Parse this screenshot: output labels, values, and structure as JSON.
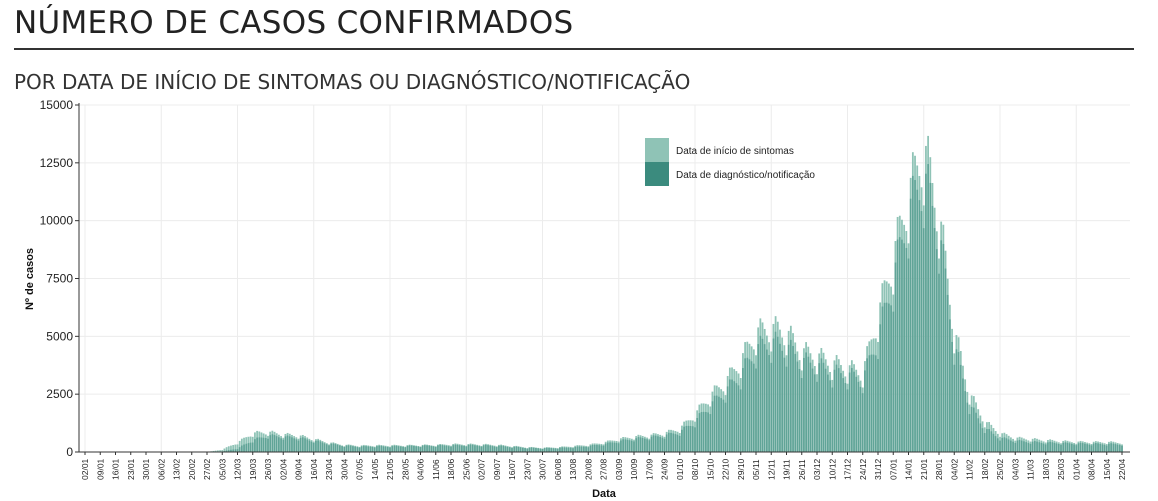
{
  "header": {
    "title": "NÚMERO DE CASOS CONFIRMADOS",
    "subtitle": "POR DATA DE INÍCIO DE SINTOMAS OU DIAGNÓSTICO/NOTIFICAÇÃO"
  },
  "chart_data": {
    "type": "bar",
    "xlabel": "Data",
    "ylabel": "Nº de casos",
    "ylim": [
      0,
      15000
    ],
    "yticks": [
      0,
      2500,
      5000,
      7500,
      10000,
      12500,
      15000
    ],
    "x_tick_labels": [
      "02/01",
      "09/01",
      "16/01",
      "23/01",
      "30/01",
      "06/02",
      "13/02",
      "20/02",
      "27/02",
      "05/03",
      "12/03",
      "19/03",
      "26/03",
      "02/04",
      "09/04",
      "16/04",
      "23/04",
      "30/04",
      "07/05",
      "14/05",
      "21/05",
      "28/05",
      "04/06",
      "11/06",
      "18/06",
      "25/06",
      "02/07",
      "09/07",
      "16/07",
      "23/07",
      "30/07",
      "06/08",
      "13/08",
      "20/08",
      "27/08",
      "03/09",
      "10/09",
      "17/09",
      "24/09",
      "01/10",
      "08/10",
      "15/10",
      "22/10",
      "29/10",
      "05/11",
      "12/11",
      "19/11",
      "26/11",
      "03/12",
      "10/12",
      "17/12",
      "24/12",
      "31/12",
      "07/01",
      "14/01",
      "21/01",
      "28/01",
      "04/02",
      "11/02",
      "18/02",
      "25/02",
      "04/03",
      "11/03",
      "18/03",
      "25/03",
      "01/04",
      "08/04",
      "15/04",
      "22/04"
    ],
    "legend": {
      "placement": "top-right",
      "entries": [
        "Data de início de sintomas",
        "Data de diagnóstico/notificação"
      ]
    },
    "colors": {
      "sintomas": "#8fc3b6",
      "diagnostico": "#3b8b7e",
      "grid": "#ececec"
    },
    "grid": true,
    "weekly_series": [
      {
        "name": "Data de início de sintomas",
        "values": [
          0,
          0,
          0,
          0,
          0,
          0,
          0,
          0,
          0,
          100,
          400,
          800,
          850,
          750,
          700,
          550,
          400,
          300,
          270,
          280,
          280,
          280,
          290,
          300,
          330,
          330,
          320,
          300,
          250,
          200,
          180,
          200,
          250,
          300,
          400,
          550,
          650,
          700,
          800,
          1000,
          1600,
          2400,
          3000,
          3900,
          5100,
          5300,
          5100,
          4300,
          4100,
          3800,
          3600,
          3400,
          5800,
          8300,
          11000,
          13000,
          10200,
          5200,
          2500,
          1300,
          800,
          600,
          550,
          500,
          460,
          430,
          420,
          420,
          400
        ]
      },
      {
        "name": "Data de diagnóstico/notificação",
        "values": [
          0,
          0,
          0,
          0,
          0,
          0,
          0,
          0,
          0,
          20,
          150,
          500,
          700,
          650,
          600,
          480,
          350,
          270,
          230,
          240,
          240,
          250,
          260,
          270,
          280,
          290,
          280,
          260,
          220,
          180,
          160,
          170,
          200,
          250,
          330,
          460,
          560,
          620,
          700,
          850,
          1300,
          2000,
          2600,
          3300,
          4400,
          4700,
          4500,
          3900,
          3700,
          3400,
          3300,
          3100,
          4900,
          7400,
          10200,
          11800,
          9400,
          4600,
          2000,
          1000,
          600,
          480,
          430,
          400,
          380,
          360,
          350,
          340,
          330
        ]
      }
    ]
  }
}
